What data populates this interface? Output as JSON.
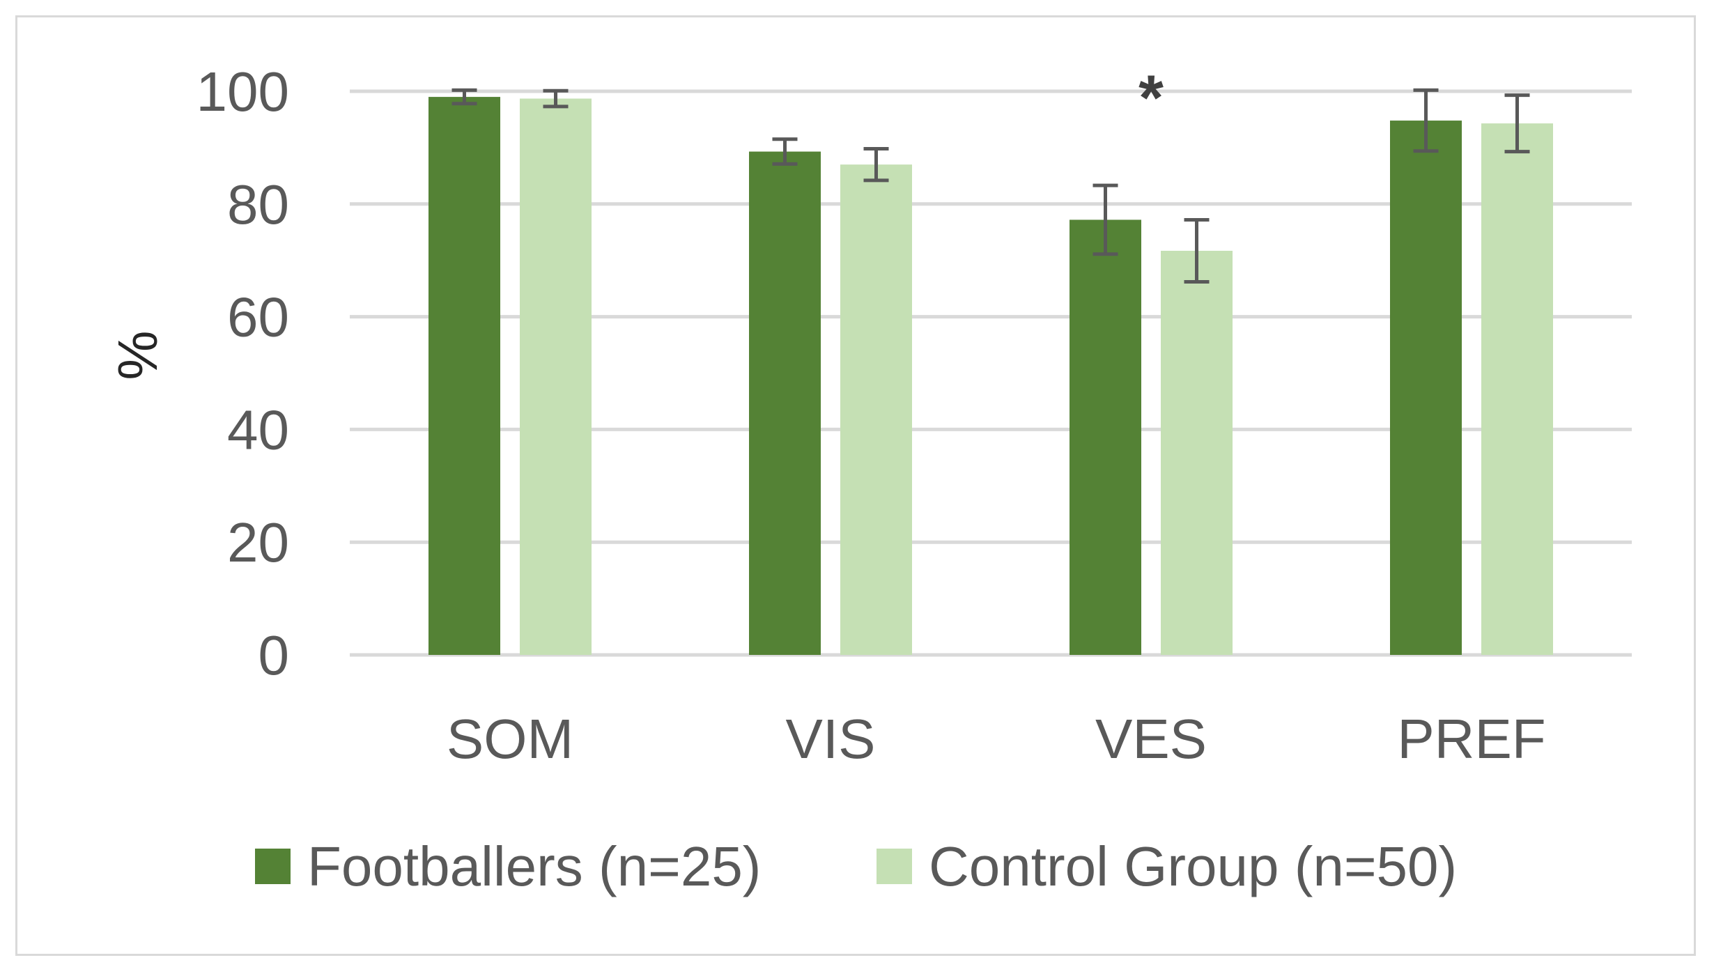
{
  "colors": {
    "footballers": "#548235",
    "control": "#c5e0b4",
    "grid": "#d9d9d9",
    "error_bar": "#595959",
    "text": "#595959"
  },
  "chart_data": {
    "type": "bar",
    "title": "",
    "xlabel": "",
    "ylabel": "%",
    "ylim": [
      0,
      100
    ],
    "yticks": [
      0,
      20,
      40,
      60,
      80,
      100
    ],
    "grid": true,
    "legend_position": "bottom",
    "categories": [
      "SOM",
      "VIS",
      "VES",
      "PREF"
    ],
    "series": [
      {
        "name": "Footballers (n=25)",
        "values": [
          99.0,
          89.3,
          77.2,
          94.8
        ],
        "error": [
          1.2,
          2.2,
          6.1,
          5.4
        ]
      },
      {
        "name": "Control Group (n=50)",
        "values": [
          98.7,
          87.0,
          71.7,
          94.3
        ],
        "error": [
          1.4,
          2.8,
          5.5,
          5.0
        ]
      }
    ],
    "annotations": [
      {
        "text": "*",
        "category": "VES"
      }
    ]
  }
}
